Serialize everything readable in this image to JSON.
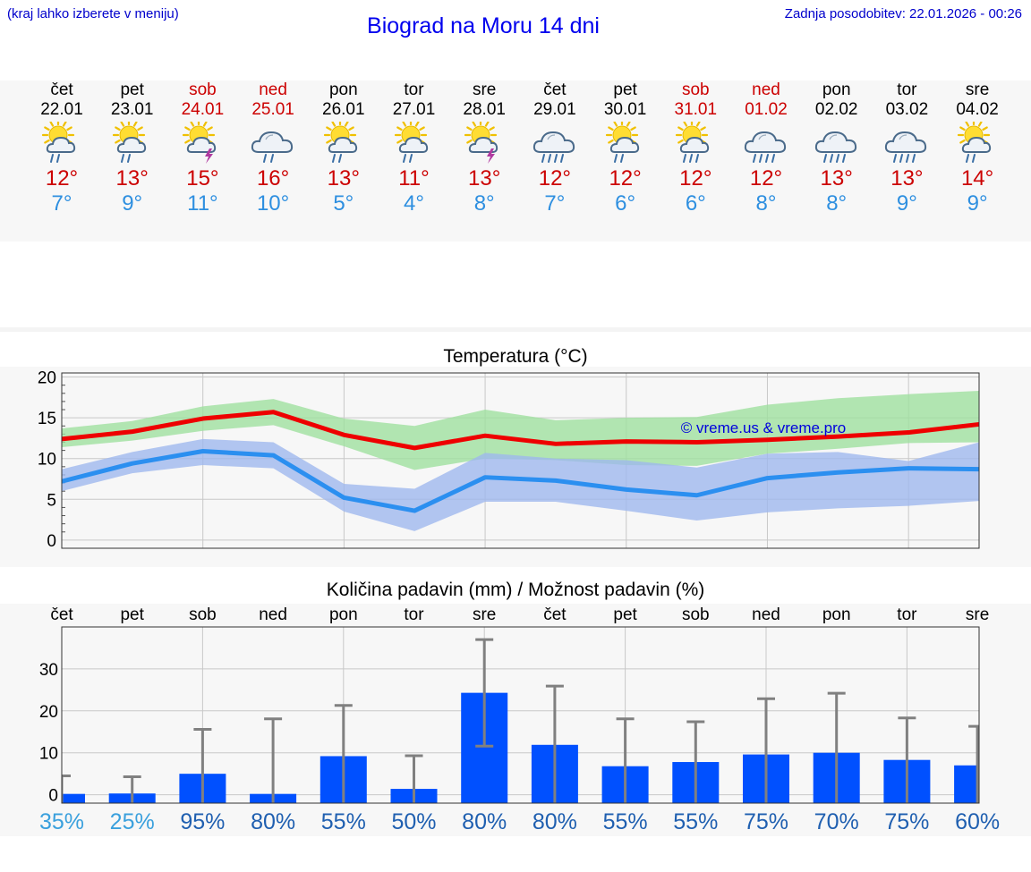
{
  "header": {
    "note": "(kraj lahko izberete v meniju)",
    "title": "Biograd na Moru 14 dni",
    "updated": "Zadnja posodobitev: 22.01.2026 - 00:26"
  },
  "days": [
    {
      "name": "čet",
      "date": "22.01",
      "weekend": false,
      "icon": "sun-cloud-rain-icon",
      "max": "12°",
      "min": "7°"
    },
    {
      "name": "pet",
      "date": "23.01",
      "weekend": false,
      "icon": "sun-cloud-rain-icon",
      "max": "13°",
      "min": "9°"
    },
    {
      "name": "sob",
      "date": "24.01",
      "weekend": true,
      "icon": "sun-thunder-icon",
      "max": "15°",
      "min": "11°"
    },
    {
      "name": "ned",
      "date": "25.01",
      "weekend": true,
      "icon": "cloud-rain-icon",
      "max": "16°",
      "min": "10°"
    },
    {
      "name": "pon",
      "date": "26.01",
      "weekend": false,
      "icon": "sun-cloud-rain-icon",
      "max": "13°",
      "min": "5°"
    },
    {
      "name": "tor",
      "date": "27.01",
      "weekend": false,
      "icon": "sun-cloud-rain-icon",
      "max": "11°",
      "min": "4°"
    },
    {
      "name": "sre",
      "date": "28.01",
      "weekend": false,
      "icon": "sun-thunder-icon",
      "max": "13°",
      "min": "8°"
    },
    {
      "name": "čet",
      "date": "29.01",
      "weekend": false,
      "icon": "cloud-heavy-rain-icon",
      "max": "12°",
      "min": "7°"
    },
    {
      "name": "pet",
      "date": "30.01",
      "weekend": false,
      "icon": "sun-cloud-rain-icon",
      "max": "12°",
      "min": "6°"
    },
    {
      "name": "sob",
      "date": "31.01",
      "weekend": true,
      "icon": "sun-cloud-heavy-rain-icon",
      "max": "12°",
      "min": "6°"
    },
    {
      "name": "ned",
      "date": "01.02",
      "weekend": true,
      "icon": "cloud-heavy-rain-icon",
      "max": "12°",
      "min": "8°"
    },
    {
      "name": "pon",
      "date": "02.02",
      "weekend": false,
      "icon": "cloud-heavy-rain-icon",
      "max": "13°",
      "min": "8°"
    },
    {
      "name": "tor",
      "date": "03.02",
      "weekend": false,
      "icon": "cloud-heavy-rain-icon",
      "max": "13°",
      "min": "9°"
    },
    {
      "name": "sre",
      "date": "04.02",
      "weekend": false,
      "icon": "sun-cloud-rain-icon",
      "max": "14°",
      "min": "9°"
    }
  ],
  "colors": {
    "max_line": "#ee0000",
    "min_line": "#2b8ff0",
    "max_band": "#9fe09f",
    "min_band": "#9fb8ee",
    "bar": "#0050ff",
    "whisker": "#808080",
    "pct_high": "#1f5fb0",
    "pct_low": "#3aa0dd"
  },
  "chart_data": [
    {
      "type": "line",
      "title": "Temperatura (°C)",
      "watermark": "© vreme.us & vreme.pro",
      "xlabel": "",
      "ylabel": "",
      "ylim": [
        -1,
        20.5
      ],
      "yticks": [
        0,
        5,
        10,
        15,
        20
      ],
      "categories": [
        "22.01",
        "23.01",
        "24.01",
        "25.01",
        "26.01",
        "27.01",
        "28.01",
        "29.01",
        "30.01",
        "31.01",
        "01.02",
        "02.02",
        "03.02",
        "04.02"
      ],
      "series": [
        {
          "name": "max",
          "values": [
            12.4,
            13.3,
            14.9,
            15.7,
            12.9,
            11.3,
            12.8,
            11.8,
            12.1,
            12.0,
            12.3,
            12.7,
            13.2,
            14.2
          ]
        },
        {
          "name": "max_upper",
          "values": [
            13.7,
            14.6,
            16.4,
            17.3,
            14.9,
            14.0,
            16.0,
            14.7,
            15.0,
            15.1,
            16.6,
            17.4,
            17.9,
            18.3
          ]
        },
        {
          "name": "max_lower",
          "values": [
            11.4,
            12.2,
            13.4,
            14.1,
            11.5,
            8.6,
            10.0,
            9.8,
            9.2,
            9.1,
            10.6,
            11.2,
            11.9,
            12.0
          ]
        },
        {
          "name": "min",
          "values": [
            7.2,
            9.4,
            10.9,
            10.4,
            5.2,
            3.6,
            7.7,
            7.3,
            6.2,
            5.5,
            7.6,
            8.3,
            8.8,
            8.7
          ]
        },
        {
          "name": "min_upper",
          "values": [
            8.7,
            10.8,
            12.4,
            12.0,
            6.9,
            6.3,
            10.7,
            10.0,
            9.8,
            8.9,
            10.6,
            10.8,
            9.7,
            12.0
          ]
        },
        {
          "name": "min_lower",
          "values": [
            6.0,
            8.2,
            9.2,
            8.8,
            3.5,
            1.1,
            4.7,
            4.7,
            3.6,
            2.4,
            3.4,
            3.9,
            4.2,
            4.8
          ]
        }
      ]
    },
    {
      "type": "bar",
      "title": "Količina padavin (mm) / Možnost padavin (%)",
      "xlabel": "",
      "ylabel": "",
      "ylim": [
        -2,
        40
      ],
      "yticks": [
        0,
        10,
        20,
        30
      ],
      "categories": [
        "čet",
        "pet",
        "sob",
        "ned",
        "pon",
        "tor",
        "sre",
        "čet",
        "pet",
        "sob",
        "ned",
        "pon",
        "tor",
        "sre"
      ],
      "series": [
        {
          "name": "precipitation_mm",
          "values": [
            0.2,
            0.3,
            5.0,
            0.2,
            9.2,
            1.4,
            24.3,
            11.9,
            6.8,
            7.8,
            9.6,
            10.0,
            8.3,
            7.0
          ]
        },
        {
          "name": "precipitation_max_mm",
          "values": [
            4.5,
            4.3,
            15.6,
            18.1,
            21.3,
            9.3,
            37.0,
            25.9,
            18.1,
            17.4,
            22.9,
            24.2,
            18.3,
            16.3
          ]
        },
        {
          "name": "precipitation_min_mm",
          "values": [
            0,
            0,
            0,
            0,
            0,
            0,
            11.6,
            0,
            0,
            0,
            0,
            0,
            0,
            0
          ]
        }
      ],
      "probability": [
        "35%",
        "25%",
        "95%",
        "80%",
        "55%",
        "50%",
        "80%",
        "80%",
        "55%",
        "55%",
        "75%",
        "70%",
        "75%",
        "60%"
      ]
    }
  ]
}
